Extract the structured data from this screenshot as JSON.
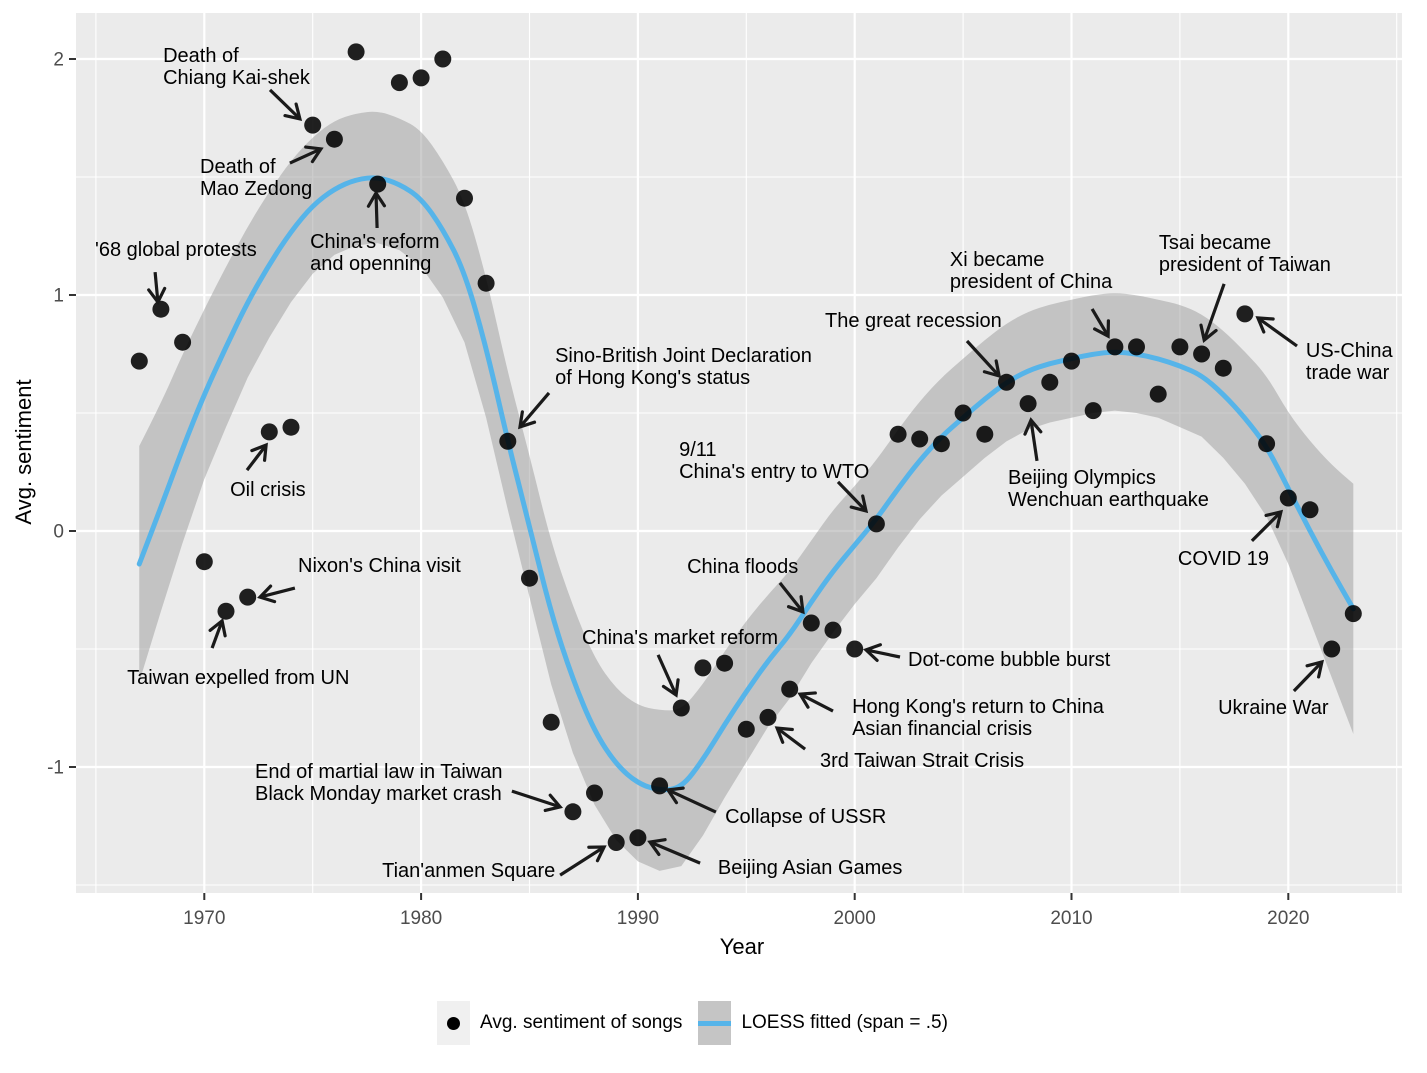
{
  "chart_data": {
    "type": "scatter",
    "title": "",
    "xlabel": "Year",
    "ylabel": "Avg. sentiment",
    "x_axis": {
      "ticks": [
        1970,
        1980,
        1990,
        2000,
        2010,
        2020
      ],
      "minor_ticks": [
        1965,
        1975,
        1985,
        1995,
        2005,
        2015,
        2025
      ],
      "range": [
        1964.1,
        2025.3
      ]
    },
    "y_axis": {
      "ticks": [
        -1,
        0,
        1,
        2
      ],
      "minor_ticks": [
        -1.5,
        -0.5,
        0.5,
        1.5
      ],
      "range": [
        -1.52,
        2.18
      ]
    },
    "grid": "on",
    "legend_position": "bottom",
    "legend": [
      {
        "key": "point",
        "label": "Avg. sentiment of songs"
      },
      {
        "key": "line-band",
        "label": "LOESS fitted (span = .5)"
      }
    ],
    "series": [
      {
        "name": "Avg. sentiment of songs",
        "type": "scatter",
        "points": [
          [
            1967,
            0.72
          ],
          [
            1968,
            0.94
          ],
          [
            1969,
            0.8
          ],
          [
            1970,
            -0.13
          ],
          [
            1971,
            -0.34
          ],
          [
            1972,
            -0.28
          ],
          [
            1973,
            0.42
          ],
          [
            1974,
            0.44
          ],
          [
            1975,
            1.72
          ],
          [
            1976,
            1.66
          ],
          [
            1977,
            2.03
          ],
          [
            1978,
            1.47
          ],
          [
            1979,
            1.9
          ],
          [
            1980,
            1.92
          ],
          [
            1981,
            2.0
          ],
          [
            1982,
            1.41
          ],
          [
            1983,
            1.05
          ],
          [
            1984,
            0.38
          ],
          [
            1985,
            -0.2
          ],
          [
            1986,
            -0.81
          ],
          [
            1987,
            -1.19
          ],
          [
            1988,
            -1.11
          ],
          [
            1989,
            -1.32
          ],
          [
            1990,
            -1.3
          ],
          [
            1991,
            -1.08
          ],
          [
            1992,
            -0.75
          ],
          [
            1993,
            -0.58
          ],
          [
            1994,
            -0.56
          ],
          [
            1995,
            -0.84
          ],
          [
            1996,
            -0.79
          ],
          [
            1997,
            -0.67
          ],
          [
            1998,
            -0.39
          ],
          [
            1999,
            -0.42
          ],
          [
            2000,
            -0.5
          ],
          [
            2001,
            0.03
          ],
          [
            2002,
            0.41
          ],
          [
            2003,
            0.39
          ],
          [
            2004,
            0.37
          ],
          [
            2005,
            0.5
          ],
          [
            2006,
            0.41
          ],
          [
            2007,
            0.63
          ],
          [
            2008,
            0.54
          ],
          [
            2009,
            0.63
          ],
          [
            2010,
            0.72
          ],
          [
            2011,
            0.51
          ],
          [
            2012,
            0.78
          ],
          [
            2013,
            0.78
          ],
          [
            2014,
            0.58
          ],
          [
            2015,
            0.78
          ],
          [
            2016,
            0.75
          ],
          [
            2017,
            0.69
          ],
          [
            2018,
            0.92
          ],
          [
            2019,
            0.37
          ],
          [
            2020,
            0.14
          ],
          [
            2021,
            0.09
          ],
          [
            2022,
            -0.5
          ],
          [
            2023,
            -0.35
          ]
        ]
      },
      {
        "name": "LOESS fitted (span = .5)",
        "type": "line",
        "points": [
          [
            1967,
            -0.14
          ],
          [
            1968,
            0.1
          ],
          [
            1969,
            0.35
          ],
          [
            1970,
            0.58
          ],
          [
            1971,
            0.78
          ],
          [
            1972,
            0.97
          ],
          [
            1973,
            1.13
          ],
          [
            1974,
            1.27
          ],
          [
            1975,
            1.38
          ],
          [
            1976,
            1.45
          ],
          [
            1977,
            1.49
          ],
          [
            1978,
            1.5
          ],
          [
            1979,
            1.47
          ],
          [
            1980,
            1.41
          ],
          [
            1981,
            1.28
          ],
          [
            1982,
            1.1
          ],
          [
            1983,
            0.78
          ],
          [
            1984,
            0.38
          ],
          [
            1985,
            0.02
          ],
          [
            1986,
            -0.35
          ],
          [
            1987,
            -0.63
          ],
          [
            1988,
            -0.85
          ],
          [
            1989,
            -0.99
          ],
          [
            1990,
            -1.07
          ],
          [
            1991,
            -1.1
          ],
          [
            1992,
            -1.09
          ],
          [
            1993,
            -0.97
          ],
          [
            1994,
            -0.82
          ],
          [
            1995,
            -0.68
          ],
          [
            1996,
            -0.55
          ],
          [
            1997,
            -0.44
          ],
          [
            1998,
            -0.3
          ],
          [
            1999,
            -0.17
          ],
          [
            2000,
            -0.06
          ],
          [
            2001,
            0.05
          ],
          [
            2002,
            0.18
          ],
          [
            2003,
            0.3
          ],
          [
            2004,
            0.4
          ],
          [
            2005,
            0.48
          ],
          [
            2006,
            0.56
          ],
          [
            2007,
            0.63
          ],
          [
            2008,
            0.68
          ],
          [
            2009,
            0.71
          ],
          [
            2010,
            0.73
          ],
          [
            2011,
            0.75
          ],
          [
            2012,
            0.76
          ],
          [
            2013,
            0.75
          ],
          [
            2014,
            0.73
          ],
          [
            2015,
            0.7
          ],
          [
            2016,
            0.66
          ],
          [
            2017,
            0.58
          ],
          [
            2018,
            0.48
          ],
          [
            2019,
            0.36
          ],
          [
            2020,
            0.18
          ],
          [
            2021,
            0.0
          ],
          [
            2022,
            -0.17
          ],
          [
            2023,
            -0.33
          ]
        ]
      },
      {
        "name": "confidence band",
        "type": "area",
        "points": [
          [
            1967,
            -0.64,
            0.36
          ],
          [
            1968,
            -0.34,
            0.54
          ],
          [
            1969,
            -0.05,
            0.75
          ],
          [
            1970,
            0.22,
            0.94
          ],
          [
            1971,
            0.44,
            1.12
          ],
          [
            1972,
            0.65,
            1.29
          ],
          [
            1973,
            0.82,
            1.44
          ],
          [
            1974,
            0.97,
            1.57
          ],
          [
            1975,
            1.09,
            1.67
          ],
          [
            1976,
            1.17,
            1.74
          ],
          [
            1977,
            1.21,
            1.77
          ],
          [
            1978,
            1.22,
            1.78
          ],
          [
            1979,
            1.19,
            1.75
          ],
          [
            1980,
            1.12,
            1.7
          ],
          [
            1981,
            0.99,
            1.57
          ],
          [
            1982,
            0.8,
            1.4
          ],
          [
            1983,
            0.48,
            1.08
          ],
          [
            1984,
            0.09,
            0.67
          ],
          [
            1985,
            -0.28,
            0.32
          ],
          [
            1986,
            -0.65,
            -0.05
          ],
          [
            1987,
            -0.94,
            -0.32
          ],
          [
            1988,
            -1.16,
            -0.54
          ],
          [
            1989,
            -1.31,
            -0.67
          ],
          [
            1990,
            -1.4,
            -0.74
          ],
          [
            1991,
            -1.44,
            -0.76
          ],
          [
            1992,
            -1.42,
            -0.76
          ],
          [
            1993,
            -1.29,
            -0.65
          ],
          [
            1994,
            -1.13,
            -0.51
          ],
          [
            1995,
            -0.98,
            -0.38
          ],
          [
            1996,
            -0.83,
            -0.27
          ],
          [
            1997,
            -0.71,
            -0.17
          ],
          [
            1998,
            -0.56,
            -0.04
          ],
          [
            1999,
            -0.43,
            0.09
          ],
          [
            2000,
            -0.31,
            0.19
          ],
          [
            2001,
            -0.2,
            0.3
          ],
          [
            2002,
            -0.07,
            0.43
          ],
          [
            2003,
            0.05,
            0.55
          ],
          [
            2004,
            0.15,
            0.65
          ],
          [
            2005,
            0.23,
            0.73
          ],
          [
            2006,
            0.31,
            0.81
          ],
          [
            2007,
            0.38,
            0.88
          ],
          [
            2008,
            0.43,
            0.93
          ],
          [
            2009,
            0.46,
            0.96
          ],
          [
            2010,
            0.48,
            0.98
          ],
          [
            2011,
            0.5,
            1.0
          ],
          [
            2012,
            0.51,
            1.01
          ],
          [
            2013,
            0.5,
            1.0
          ],
          [
            2014,
            0.48,
            0.98
          ],
          [
            2015,
            0.44,
            0.96
          ],
          [
            2016,
            0.4,
            0.92
          ],
          [
            2017,
            0.31,
            0.85
          ],
          [
            2018,
            0.2,
            0.76
          ],
          [
            2019,
            0.06,
            0.66
          ],
          [
            2020,
            -0.14,
            0.5
          ],
          [
            2021,
            -0.38,
            0.38
          ],
          [
            2022,
            -0.62,
            0.28
          ],
          [
            2023,
            -0.86,
            0.2
          ]
        ]
      }
    ],
    "annotations": [
      {
        "lines": [
          "'68 global protests"
        ],
        "tx": 1964.96,
        "ty": 1.233,
        "ax": 1967.73,
        "ay": 1.097,
        "hx": 1967.86,
        "hy": 0.97
      },
      {
        "lines": [
          "Death of",
          "Chiang Kai-shek"
        ],
        "tx": 1968.1,
        "ty": 2.055,
        "ax": 1973.03,
        "ay": 1.869,
        "hx": 1974.41,
        "hy": 1.746
      },
      {
        "lines": [
          "Death of",
          "Mao Zedong"
        ],
        "tx": 1969.8,
        "ty": 1.585,
        "ax": 1973.95,
        "ay": 1.559,
        "hx": 1975.38,
        "hy": 1.619
      },
      {
        "lines": [
          "China's reform",
          "and openning"
        ],
        "tx": 1974.88,
        "ty": 1.267,
        "ax": 1977.97,
        "ay": 1.284,
        "hx": 1977.92,
        "hy": 1.432
      },
      {
        "lines": [
          "Oil crisis"
        ],
        "tx": 1971.19,
        "ty": 0.216,
        "ax": 1971.97,
        "ay": 0.258,
        "hx": 1972.85,
        "hy": 0.364
      },
      {
        "lines": [
          "Nixon's China visit"
        ],
        "tx": 1974.32,
        "ty": -0.106,
        "ax": 1974.18,
        "ay": -0.242,
        "hx": 1972.57,
        "hy": -0.28
      },
      {
        "lines": [
          "Taiwan expelled from UN"
        ],
        "tx": 1966.44,
        "ty": -0.581,
        "ax": 1970.36,
        "ay": -0.496,
        "hx": 1970.82,
        "hy": -0.381
      },
      {
        "lines": [
          "Sino-British Joint Declaration",
          "of Hong Kong's status"
        ],
        "tx": 1986.18,
        "ty": 0.784,
        "ax": 1985.9,
        "ay": 0.585,
        "hx": 1984.56,
        "hy": 0.441
      },
      {
        "lines": [
          "9/11",
          "China's entry to WTO"
        ],
        "tx": 1991.9,
        "ty": 0.386,
        "ax": 1999.23,
        "ay": 0.208,
        "hx": 2000.52,
        "hy": 0.085
      },
      {
        "lines": [
          "China floods"
        ],
        "tx": 1992.27,
        "ty": -0.11,
        "ax": 1996.55,
        "ay": -0.22,
        "hx": 1997.61,
        "hy": -0.343
      },
      {
        "lines": [
          "China's market reform"
        ],
        "tx": 1987.42,
        "ty": -0.411,
        "ax": 1990.93,
        "ay": -0.525,
        "hx": 1991.76,
        "hy": -0.695
      },
      {
        "lines": [
          "Dot-come bubble burst"
        ],
        "tx": 2002.46,
        "ty": -0.504,
        "ax": 2002.09,
        "ay": -0.534,
        "hx": 2000.52,
        "hy": -0.504
      },
      {
        "lines": [
          "Hong Kong's return to China",
          "Asian financial crisis"
        ],
        "tx": 1999.88,
        "ty": -0.703,
        "ax": 1999.0,
        "ay": -0.763,
        "hx": 1997.48,
        "hy": -0.691
      },
      {
        "lines": [
          "3rd Taiwan Strait Crisis"
        ],
        "tx": 1998.4,
        "ty": -0.932,
        "ax": 1997.71,
        "ay": -0.924,
        "hx": 1996.42,
        "hy": -0.835
      },
      {
        "lines": [
          "Collapse of USSR"
        ],
        "tx": 1994.02,
        "ty": -1.169,
        "ax": 1993.6,
        "ay": -1.191,
        "hx": 1991.39,
        "hy": -1.097
      },
      {
        "lines": [
          "Beijing Asian Games"
        ],
        "tx": 1993.69,
        "ty": -1.386,
        "ax": 1992.87,
        "ay": -1.407,
        "hx": 1990.56,
        "hy": -1.318
      },
      {
        "lines": [
          "Tian'anmen Square"
        ],
        "tx": 1978.2,
        "ty": -1.398,
        "ax": 1986.41,
        "ay": -1.458,
        "hx": 1988.44,
        "hy": -1.339
      },
      {
        "lines": [
          "End of martial law in Taiwan",
          "Black Monday market crash"
        ],
        "tx": 1972.34,
        "ty": -0.979,
        "ax": 1984.19,
        "ay": -1.102,
        "hx": 1986.41,
        "hy": -1.169
      },
      {
        "lines": [
          "The great recession"
        ],
        "tx": 1998.63,
        "ty": 0.932,
        "ax": 2005.18,
        "ay": 0.805,
        "hx": 2006.66,
        "hy": 0.657
      },
      {
        "lines": [
          "Beijing Olympics",
          "Wenchuan earthquake"
        ],
        "tx": 2007.07,
        "ty": 0.267,
        "ax": 2008.41,
        "ay": 0.297,
        "hx": 2008.13,
        "hy": 0.47
      },
      {
        "lines": [
          "Xi became",
          "president of China"
        ],
        "tx": 2004.39,
        "ty": 1.191,
        "ax": 2010.95,
        "ay": 0.941,
        "hx": 2011.69,
        "hy": 0.826
      },
      {
        "lines": [
          "Tsai became",
          "president of Taiwan"
        ],
        "tx": 2014.03,
        "ty": 1.263,
        "ax": 2017.04,
        "ay": 1.047,
        "hx": 2016.12,
        "hy": 0.809
      },
      {
        "lines": [
          "US-China",
          "trade war"
        ],
        "tx": 2020.81,
        "ty": 0.805,
        "ax": 2020.4,
        "ay": 0.784,
        "hx": 2018.6,
        "hy": 0.903
      },
      {
        "lines": [
          "COVID 19"
        ],
        "tx": 2014.91,
        "ty": -0.076,
        "ax": 2018.32,
        "ay": -0.042,
        "hx": 2019.66,
        "hy": 0.081
      },
      {
        "lines": [
          "Ukraine War"
        ],
        "tx": 2016.76,
        "ty": -0.708,
        "ax": 2020.26,
        "ay": -0.678,
        "hx": 2021.55,
        "hy": -0.555
      }
    ],
    "colors": {
      "panel_background": "#EBEBEB",
      "gridline": "#FFFFFF",
      "point": "#000000",
      "loess_line": "#56B4E9",
      "ribbon": "#9B9B9B",
      "tick_label": "#4D4D4D",
      "annotation_text": "#000000",
      "arrow": "#1A1A1A"
    }
  },
  "legend": {
    "scatter_label": "Avg. sentiment of songs",
    "loess_label": "LOESS fitted (span = .5)"
  },
  "axes_titles": {
    "x": "Year",
    "y": "Avg. sentiment"
  }
}
